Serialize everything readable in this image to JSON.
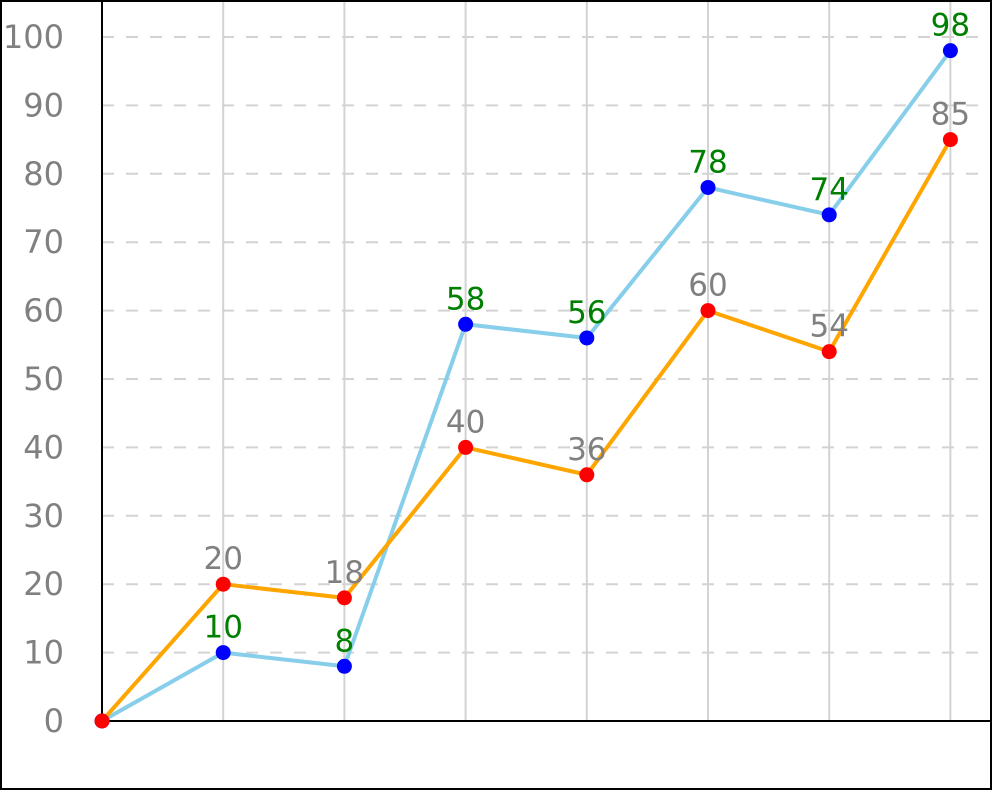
{
  "chart_data": {
    "type": "line",
    "title": "",
    "xlabel": "",
    "ylabel": "",
    "x": [
      0,
      1,
      2,
      3,
      4,
      5,
      6,
      7
    ],
    "ylim": [
      0,
      100
    ],
    "yticks": [
      0,
      10,
      20,
      30,
      40,
      50,
      60,
      70,
      80,
      90,
      100
    ],
    "grid": "on",
    "legend": "none",
    "series": [
      {
        "values": [
          0,
          10,
          8,
          58,
          56,
          78,
          74,
          98
        ],
        "line_color": "#87ceeb",
        "marker_color": "#0000ff",
        "label_color": "#008000"
      },
      {
        "values": [
          0,
          20,
          18,
          40,
          36,
          60,
          54,
          85
        ],
        "line_color": "#ffa500",
        "marker_color": "#ff0000",
        "label_color": "#808080"
      }
    ]
  }
}
